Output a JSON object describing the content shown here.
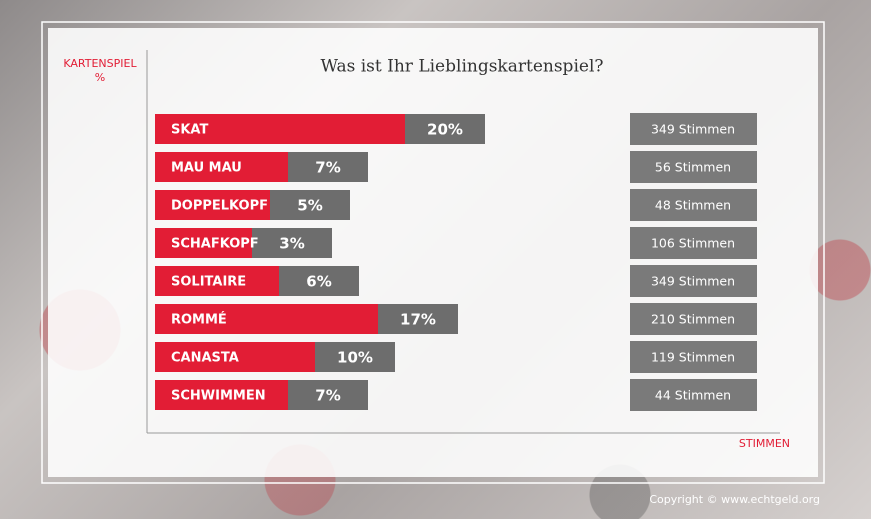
{
  "chart_data": {
    "type": "bar",
    "title": "Was ist Ihr Lieblingskartenspiel?",
    "y_label": "KARTENSPIEL",
    "y_unit": "%",
    "x_label": "STIMMEN",
    "categories": [
      "SKAT",
      "MAU MAU",
      "DOPPELKOPF",
      "SCHAFKOPF",
      "SOLITAIRE",
      "ROMMÉ",
      "CANASTA",
      "SCHWIMMEN"
    ],
    "values": [
      20,
      7,
      5,
      3,
      6,
      17,
      10,
      7
    ],
    "value_labels": [
      "20%",
      "7%",
      "5%",
      "3%",
      "6%",
      "17%",
      "10%",
      "7%"
    ],
    "votes_labels": [
      "349 Stimmen",
      "56 Stimmen",
      "48  Stimmen",
      "106  Stimmen",
      "349  Stimmen",
      "210  Stimmen",
      "119  Stimmen",
      "44  Stimmen"
    ],
    "color": "#e21d35",
    "secondary_color": "#6d6d6d"
  },
  "copyright": "Copyright © www.echtgeld.org"
}
